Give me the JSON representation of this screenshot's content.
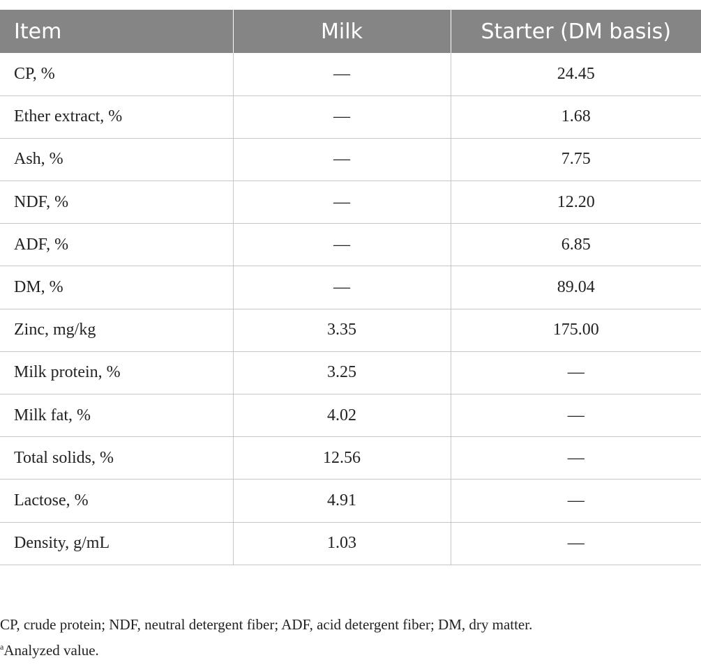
{
  "table": {
    "headers": [
      "Item",
      "Milk",
      "Starter (DM basis)"
    ],
    "rows": [
      [
        "CP, %",
        "—",
        "24.45"
      ],
      [
        "Ether extract, %",
        "—",
        "1.68"
      ],
      [
        "Ash, %",
        "—",
        "7.75"
      ],
      [
        "NDF, %",
        "—",
        "12.20"
      ],
      [
        "ADF, %",
        "—",
        "6.85"
      ],
      [
        "DM, %",
        "—",
        "89.04"
      ],
      [
        "Zinc, mg/kg",
        "3.35",
        "175.00"
      ],
      [
        "Milk protein, %",
        "3.25",
        "—"
      ],
      [
        "Milk fat, %",
        "4.02",
        "—"
      ],
      [
        "Total solids, %",
        "12.56",
        "—"
      ],
      [
        "Lactose, %",
        "4.91",
        "—"
      ],
      [
        "Density, g/mL",
        "1.03",
        "—"
      ]
    ]
  },
  "footnotes": {
    "abbreviations": "CP, crude protein; NDF, neutral detergent fiber; ADF, acid detergent fiber; DM, dry matter.",
    "note_marker": "a",
    "note_text": "Analyzed value."
  }
}
